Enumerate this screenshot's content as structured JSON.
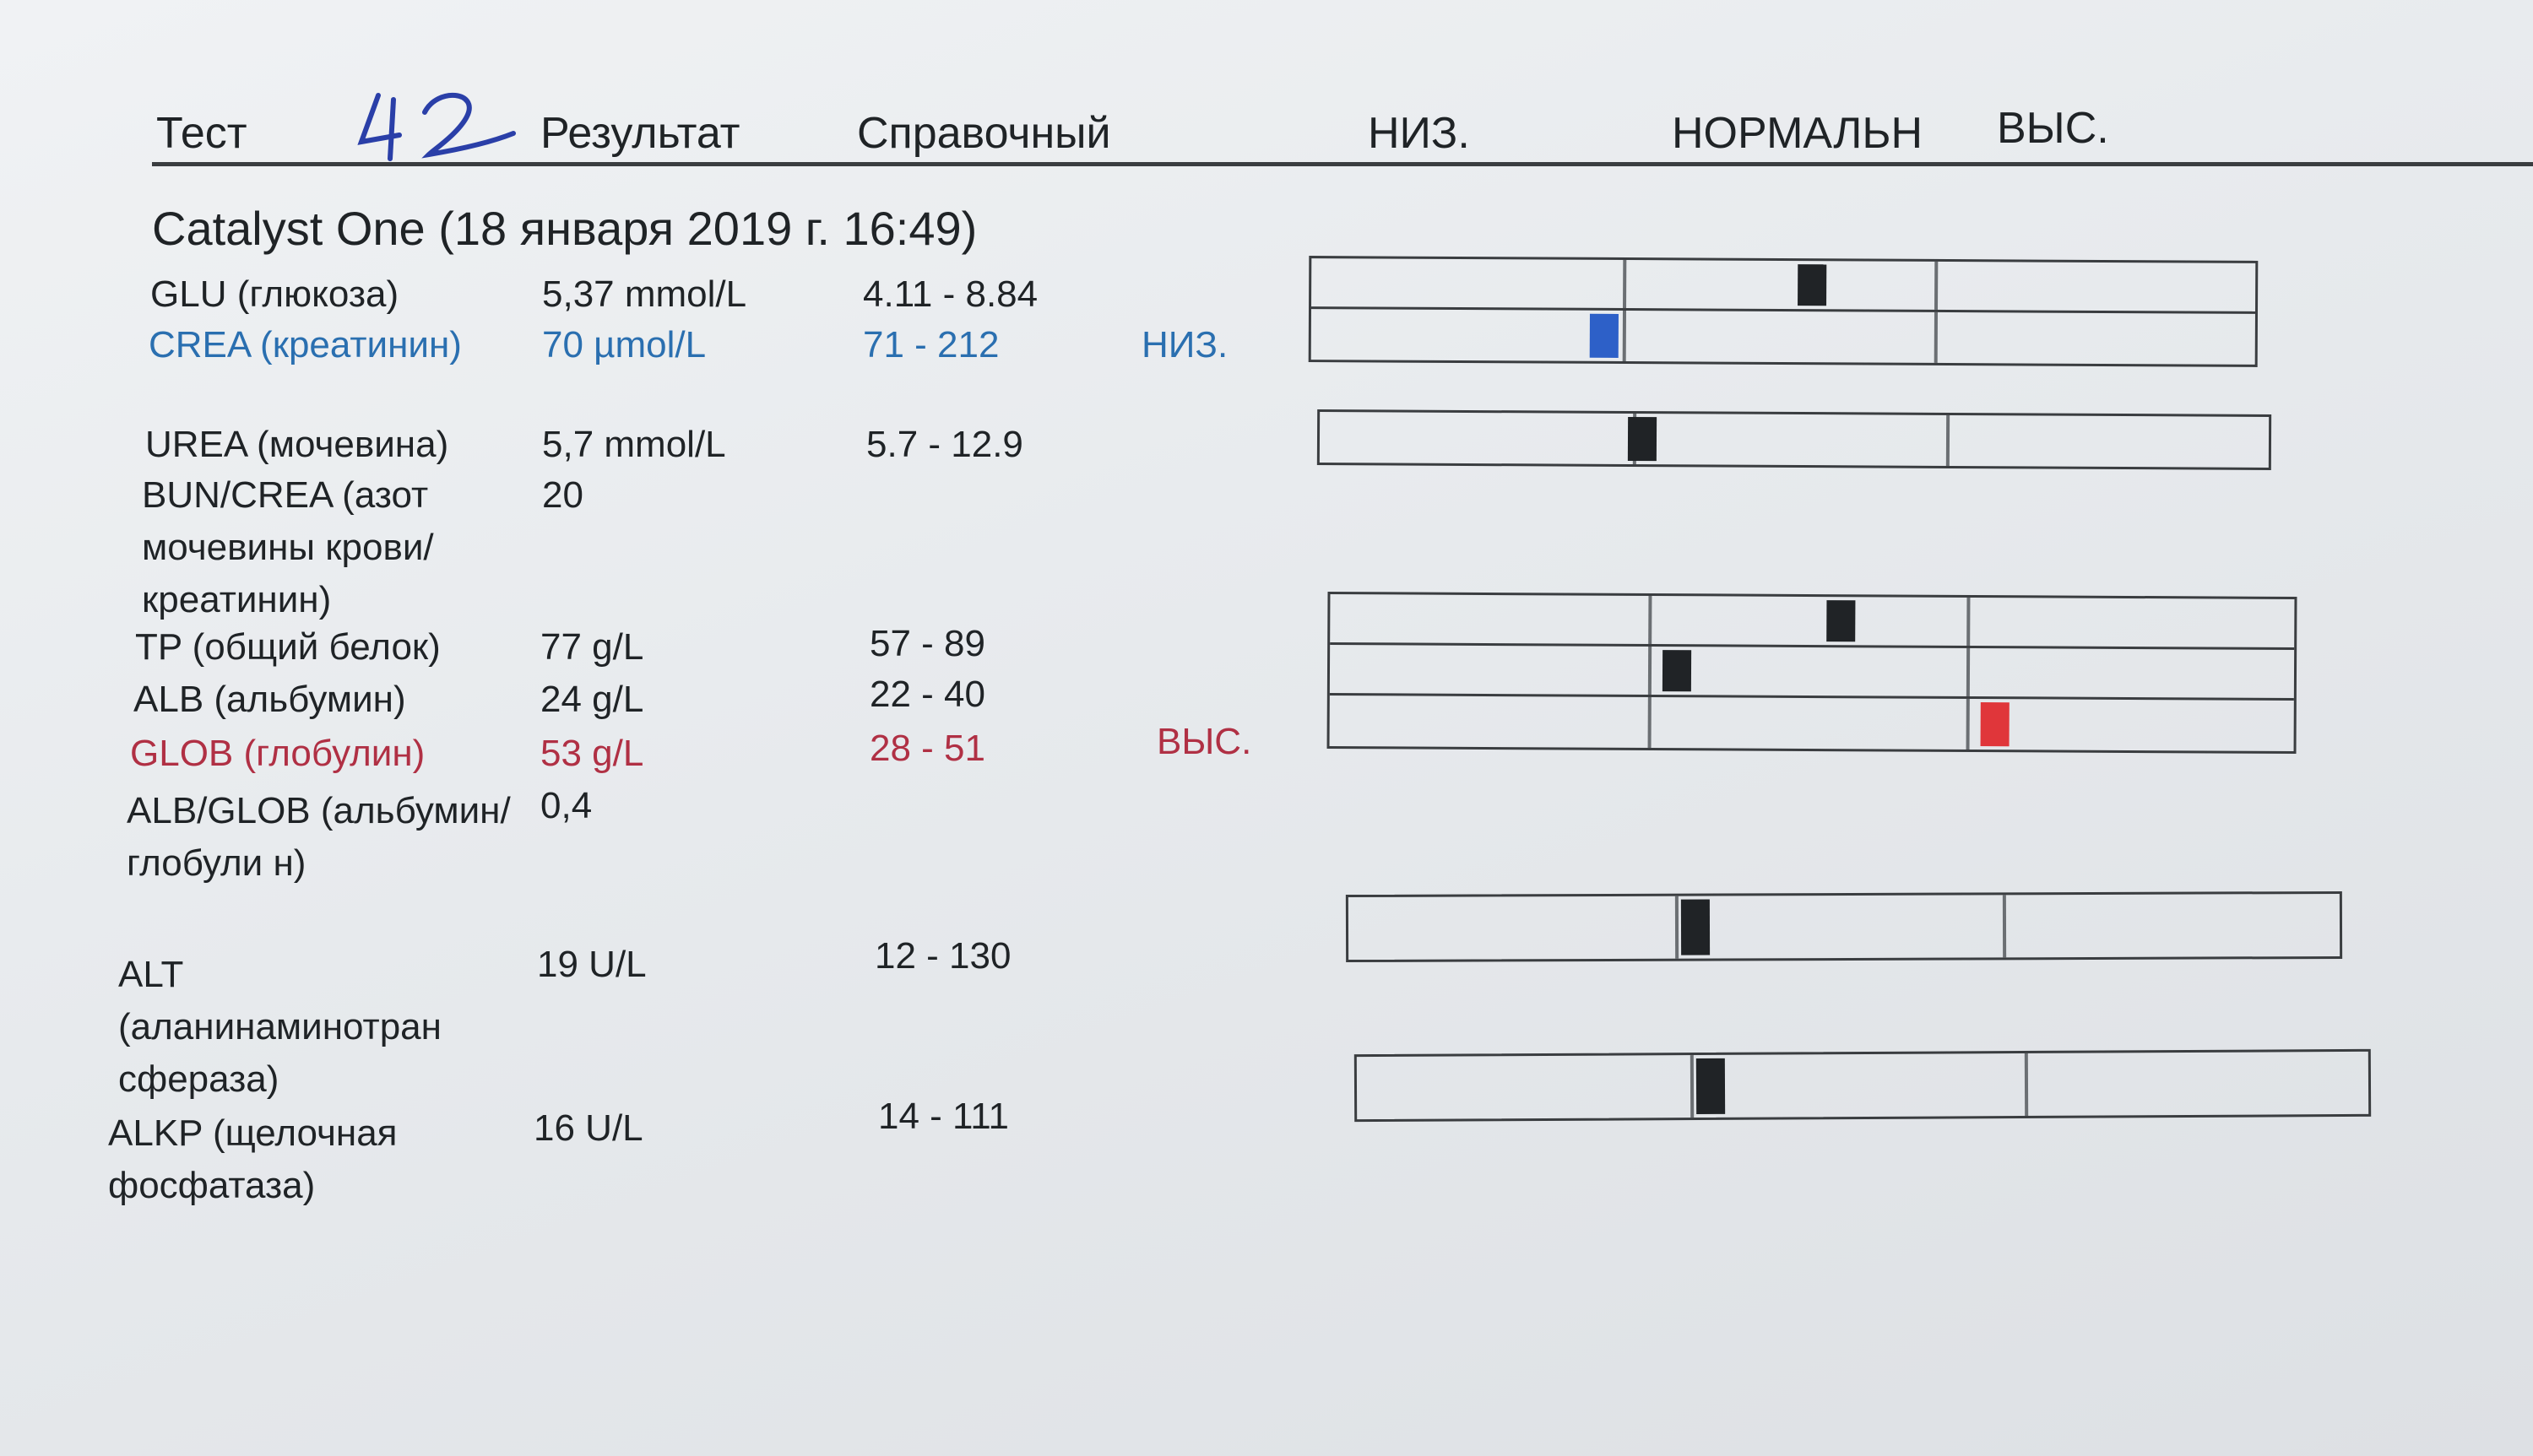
{
  "header": {
    "test": "Тест",
    "handwritten_note": "42",
    "result": "Результат",
    "reference": "Справочный",
    "low": "НИЗ.",
    "normal": "НОРМАЛЬН",
    "high": "ВЫС."
  },
  "title": "Catalyst One (18 января 2019 г. 16:49)",
  "rows": [
    {
      "name": "GLU (глюкоза)",
      "result": "5,37 mmol/L",
      "ref": "4.11 - 8.84",
      "flag": "",
      "level": 0.53
    },
    {
      "name": "CREA (креатинин)",
      "result": "70 µmol/L",
      "ref": "71 - 212",
      "flag": "НИЗ.",
      "level": 0.31
    },
    {
      "name": "UREA (мочевина)",
      "result": "5,7 mmol/L",
      "ref": "5.7 - 12.9",
      "flag": "",
      "level": 0.34
    },
    {
      "name": "BUN/CREA (азот мочевины крови/креатинин)",
      "result": "20",
      "ref": "",
      "flag": ""
    },
    {
      "name": "TP (общий белок)",
      "result": "77 g/L",
      "ref": "57 - 89",
      "flag": "",
      "level": 0.53
    },
    {
      "name": "ALB (альбумин)",
      "result": "24 g/L",
      "ref": "22 - 40",
      "flag": "",
      "level": 0.36
    },
    {
      "name": "GLOB (глобулин)",
      "result": "53 g/L",
      "ref": "28 - 51",
      "flag": "ВЫС.",
      "level": 0.69
    },
    {
      "name": "ALB/GLOB (альбумин/глобули н)",
      "result": "0,4",
      "ref": "",
      "flag": ""
    },
    {
      "name": "ALT (аланинаминотран сфераза)",
      "result": "19 U/L",
      "ref": "12 - 130",
      "flag": "",
      "level": 0.35
    },
    {
      "name": "ALKP (щелочная фосфатаза)",
      "result": "16 U/L",
      "ref": "14 - 111",
      "flag": "",
      "level": 0.35
    }
  ],
  "colors": {
    "low": "#2a6fb0",
    "high": "#b03044",
    "marker": "#202326",
    "marker_low": "#2d60c8",
    "marker_high": "#e0363a"
  }
}
